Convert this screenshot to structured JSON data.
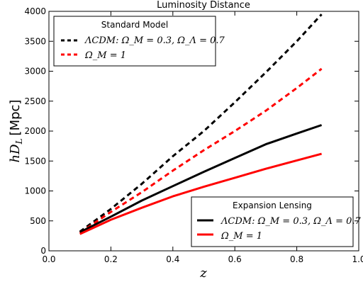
{
  "chart_data": {
    "type": "line",
    "title": "Luminosity Distance",
    "xlabel": "z",
    "ylabel_math": "hD",
    "ylabel_sub": "L",
    "ylabel_unit": "[Mpc]",
    "xlim": [
      0.0,
      1.0
    ],
    "ylim": [
      0,
      4000
    ],
    "xticks": [
      0.0,
      0.2,
      0.4,
      0.6,
      0.8,
      1.0
    ],
    "xtick_labels": [
      "0.0",
      "0.2",
      "0.4",
      "0.6",
      "0.8",
      "1.0"
    ],
    "yticks": [
      0,
      500,
      1000,
      1500,
      2000,
      2500,
      3000,
      3500,
      4000
    ],
    "ytick_labels": [
      "0",
      "500",
      "1000",
      "1500",
      "2000",
      "2500",
      "3000",
      "3500",
      "4000"
    ],
    "grid": false,
    "x": [
      0.1,
      0.2,
      0.3,
      0.4,
      0.5,
      0.6,
      0.7,
      0.8,
      0.88
    ],
    "series": [
      {
        "name": "ΛCDM:  Ω_M = 0.3, Ω_Λ = 0.7",
        "group": "Standard Model",
        "color": "#000000",
        "dash": "dashed",
        "values": [
          320,
          700,
          1120,
          1580,
          2000,
          2480,
          2980,
          3500,
          3950
        ]
      },
      {
        "name": "Ω_M = 1",
        "group": "Standard Model",
        "color": "#ff0000",
        "dash": "dashed",
        "values": [
          300,
          650,
          980,
          1340,
          1680,
          2000,
          2340,
          2720,
          3040
        ]
      },
      {
        "name": "ΛCDM:  Ω_M = 0.3, Ω_Λ = 0.7",
        "group": "Expansion Lensing",
        "color": "#000000",
        "dash": "solid",
        "values": [
          310,
          570,
          840,
          1080,
          1320,
          1550,
          1780,
          1960,
          2100
        ]
      },
      {
        "name": "Ω_M = 1",
        "group": "Expansion Lensing",
        "color": "#ff0000",
        "dash": "solid",
        "values": [
          280,
          520,
          720,
          910,
          1070,
          1220,
          1370,
          1510,
          1620
        ]
      }
    ],
    "legends": [
      {
        "title": "Standard Model",
        "placement": "upper-left",
        "series": [
          0,
          1
        ]
      },
      {
        "title": "Expansion Lensing",
        "placement": "lower-right",
        "series": [
          2,
          3
        ]
      }
    ]
  }
}
